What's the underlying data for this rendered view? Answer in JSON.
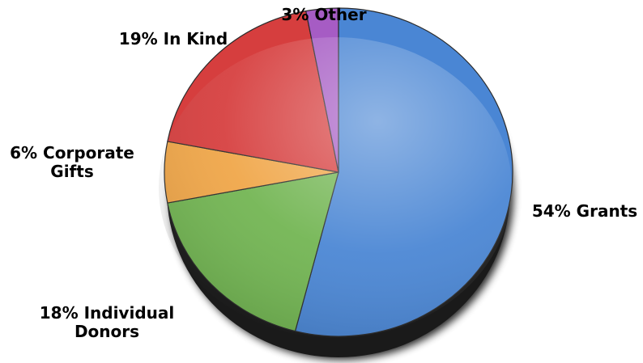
{
  "chart_data": {
    "type": "pie",
    "title": "",
    "start_angle_deg": 0,
    "direction": "clockwise",
    "slices": [
      {
        "name": "Grants",
        "value": 54,
        "color": "#4a86d4",
        "label_lines": [
          "54% Grants"
        ]
      },
      {
        "name": "Individual Donors",
        "value": 18,
        "color": "#72b552",
        "label_lines": [
          "18% Individual",
          "Donors"
        ]
      },
      {
        "name": "Corporate Gifts",
        "value": 6,
        "color": "#f0a648",
        "label_lines": [
          "6% Corporate",
          "Gifts"
        ]
      },
      {
        "name": "In Kind",
        "value": 19,
        "color": "#d63e3e",
        "label_lines": [
          "19% In Kind"
        ]
      },
      {
        "name": "Other",
        "value": 3,
        "color": "#a65cc4",
        "label_lines": [
          "3% Other"
        ]
      }
    ]
  }
}
